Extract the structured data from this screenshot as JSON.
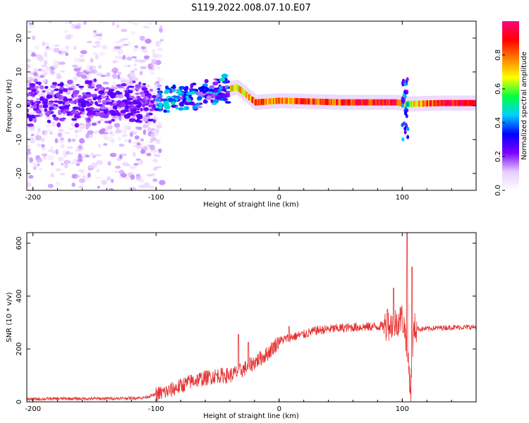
{
  "title": "S119.2022.008.07.10.E07",
  "chart_data": [
    {
      "type": "heatmap",
      "xlabel": "Height of straight line (km)",
      "ylabel": "Frequency (Hz)",
      "xlim": [
        -205,
        160
      ],
      "ylim": [
        -25,
        25
      ],
      "xticks": [
        -200,
        -100,
        0,
        100
      ],
      "yticks": [
        -20,
        -10,
        0,
        10,
        20
      ],
      "colorbar": {
        "label": "Normalized spectral amplitude",
        "range": [
          0,
          1
        ],
        "ticks": [
          0.0,
          0.2,
          0.4,
          0.6,
          0.8
        ],
        "colormap": [
          "#ffffff",
          "#e6ccff",
          "#7a00ff",
          "#0000ff",
          "#00d0ff",
          "#00ff40",
          "#ffff00",
          "#ff8000",
          "#ff0000",
          "#ff0080"
        ]
      },
      "ridge": [
        {
          "x": -205,
          "f": 0.5,
          "amp": 0.2
        },
        {
          "x": -100,
          "f": 1.0,
          "amp": 0.3
        },
        {
          "x": -60,
          "f": 3.5,
          "amp": 0.5
        },
        {
          "x": -35,
          "f": 5.5,
          "amp": 0.7
        },
        {
          "x": -20,
          "f": 1.0,
          "amp": 0.8
        },
        {
          "x": 0,
          "f": 1.5,
          "amp": 0.8
        },
        {
          "x": 50,
          "f": 1.0,
          "amp": 0.85
        },
        {
          "x": 95,
          "f": 1.0,
          "amp": 0.9
        },
        {
          "x": 102,
          "f": 0.5,
          "amp": 0.6
        },
        {
          "x": 130,
          "f": 0.8,
          "amp": 0.9
        },
        {
          "x": 160,
          "f": 0.8,
          "amp": 0.95
        }
      ]
    },
    {
      "type": "line",
      "xlabel": "Height of straight line (km)",
      "ylabel": "SNR (10 * v/v)",
      "xlim": [
        -205,
        160
      ],
      "ylim": [
        0,
        640
      ],
      "xticks": [
        -200,
        -100,
        0,
        100
      ],
      "yticks": [
        0,
        200,
        400,
        600
      ],
      "color": "#e53030",
      "x": [
        -205,
        -180,
        -150,
        -120,
        -110,
        -100,
        -90,
        -80,
        -70,
        -60,
        -50,
        -40,
        -30,
        -20,
        -10,
        0,
        10,
        20,
        30,
        40,
        60,
        80,
        90,
        95,
        100,
        103,
        105,
        107,
        108,
        110,
        115,
        130,
        145,
        160
      ],
      "y": [
        10,
        12,
        12,
        14,
        16,
        28,
        40,
        60,
        80,
        90,
        100,
        100,
        120,
        150,
        180,
        230,
        245,
        255,
        270,
        275,
        282,
        285,
        290,
        300,
        320,
        250,
        150,
        40,
        200,
        280,
        275,
        280,
        282,
        283
      ],
      "spikes": [
        {
          "x": -33,
          "y": 255
        },
        {
          "x": -25,
          "y": 225
        },
        {
          "x": 8,
          "y": 285
        },
        {
          "x": 88,
          "y": 350
        },
        {
          "x": 93,
          "y": 430
        },
        {
          "x": 104,
          "y": 640
        },
        {
          "x": 108,
          "y": 510
        }
      ]
    }
  ]
}
